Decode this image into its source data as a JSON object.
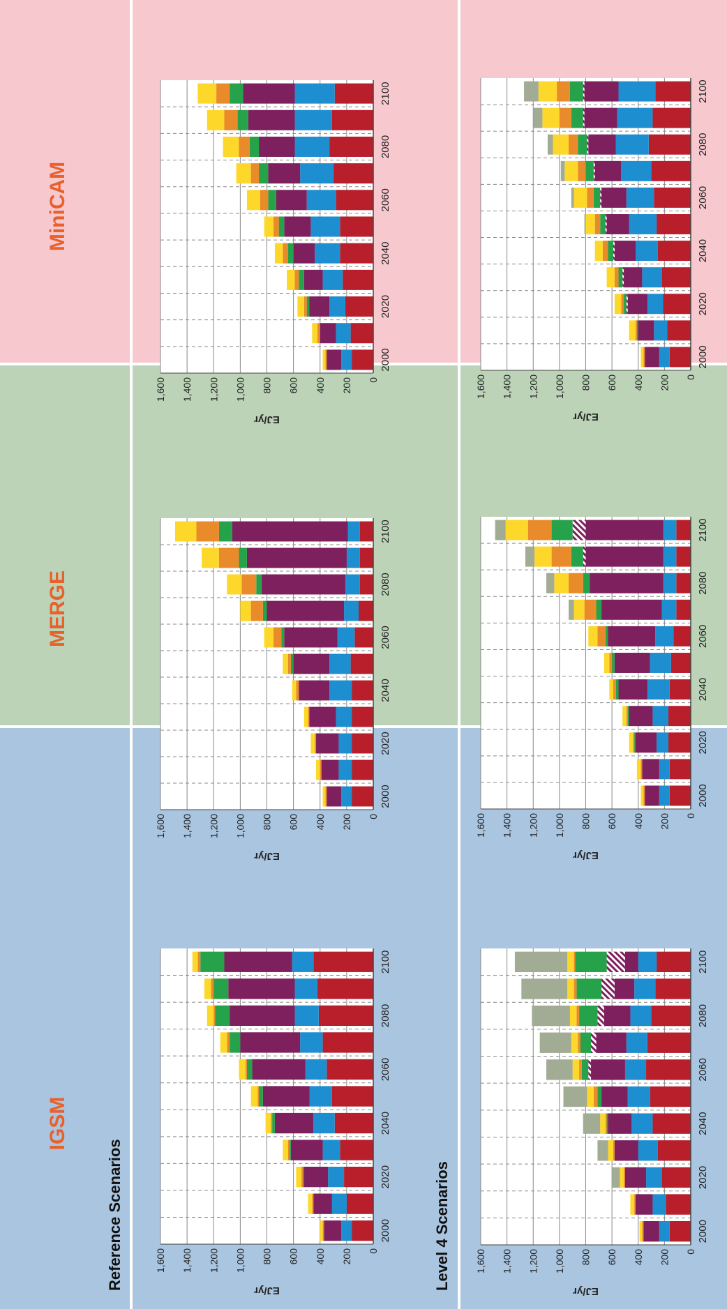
{
  "page": {
    "row_titles": [
      "Reference Scenarios",
      "Level 4 Scenarios"
    ],
    "model_names": [
      "IGSM",
      "MERGE",
      "MiniCAM"
    ],
    "colors": {
      "panel_bg": [
        "#a9c5e0",
        "#bcd3b8",
        "#f7c9cf"
      ],
      "model_title": "#e8602a",
      "grid": "#888888",
      "grid_dash": "#8a8a8a"
    },
    "segment_colors": [
      "#b81f2a",
      "#1d8fd0",
      "#7e1f5e",
      "#7e1f5e",
      "#26a24a",
      "#e98b2a",
      "#fdd72a",
      "#a2ac94"
    ],
    "hatched_segment": 3
  },
  "chart_data": [
    {
      "type": "bar",
      "stacked": true,
      "orientation": "horizontal",
      "model": "IGSM",
      "row": "Reference Scenarios",
      "ylabel": "EJ/yr",
      "ylim": [
        0,
        1600
      ],
      "yticks": [
        "0",
        "200",
        "400",
        "600",
        "800",
        "1,000",
        "1,200",
        "1,400",
        "1,600"
      ],
      "x": [
        "2000",
        "2010",
        "2020",
        "2030",
        "2040",
        "2050",
        "2060",
        "2070",
        "2080",
        "2090",
        "2100"
      ],
      "xtick_labels": [
        "2000",
        "",
        "2020",
        "",
        "2040",
        "",
        "2060",
        "",
        "2080",
        "",
        "2100"
      ],
      "stacks": [
        [
          160,
          80,
          130,
          0,
          0,
          10,
          20,
          0
        ],
        [
          200,
          110,
          140,
          0,
          0,
          10,
          30,
          0
        ],
        [
          220,
          120,
          180,
          0,
          10,
          10,
          40,
          0
        ],
        [
          250,
          130,
          240,
          0,
          10,
          10,
          40,
          0
        ],
        [
          290,
          160,
          290,
          0,
          20,
          10,
          40,
          0
        ],
        [
          310,
          170,
          350,
          0,
          30,
          10,
          50,
          0
        ],
        [
          350,
          160,
          400,
          0,
          40,
          10,
          50,
          0
        ],
        [
          380,
          170,
          450,
          0,
          80,
          20,
          50,
          0
        ],
        [
          410,
          180,
          490,
          0,
          110,
          10,
          50,
          0
        ],
        [
          420,
          170,
          500,
          0,
          110,
          20,
          50,
          0
        ],
        [
          450,
          160,
          510,
          0,
          180,
          20,
          40,
          0
        ]
      ]
    },
    {
      "type": "bar",
      "stacked": true,
      "orientation": "horizontal",
      "model": "MERGE",
      "row": "Reference Scenarios",
      "ylabel": "EJ/yr",
      "ylim": [
        0,
        1600
      ],
      "yticks": [
        "0",
        "200",
        "400",
        "600",
        "800",
        "1,000",
        "1,200",
        "1,400",
        "1,600"
      ],
      "x": [
        "2000",
        "2010",
        "2020",
        "2030",
        "2040",
        "2050",
        "2060",
        "2070",
        "2080",
        "2090",
        "2100"
      ],
      "xtick_labels": [
        "2000",
        "",
        "2020",
        "",
        "2040",
        "",
        "2060",
        "",
        "2080",
        "",
        "2100"
      ],
      "stacks": [
        [
          160,
          80,
          110,
          0,
          0,
          10,
          20,
          0
        ],
        [
          160,
          100,
          130,
          0,
          0,
          10,
          30,
          0
        ],
        [
          160,
          100,
          170,
          0,
          0,
          10,
          30,
          0
        ],
        [
          160,
          120,
          200,
          0,
          0,
          10,
          30,
          0
        ],
        [
          160,
          170,
          230,
          0,
          0,
          20,
          30,
          0
        ],
        [
          170,
          160,
          270,
          0,
          20,
          20,
          40,
          0
        ],
        [
          140,
          130,
          400,
          0,
          20,
          60,
          70,
          0
        ],
        [
          110,
          110,
          580,
          0,
          30,
          90,
          80,
          0
        ],
        [
          100,
          110,
          630,
          0,
          40,
          110,
          110,
          0
        ],
        [
          100,
          100,
          750,
          0,
          60,
          150,
          130,
          0
        ],
        [
          100,
          90,
          870,
          0,
          100,
          170,
          160,
          0
        ]
      ]
    },
    {
      "type": "bar",
      "stacked": true,
      "orientation": "horizontal",
      "model": "MiniCAM",
      "row": "Reference Scenarios",
      "ylabel": "EJ/yr",
      "ylim": [
        0,
        1600
      ],
      "yticks": [
        "0",
        "200",
        "400",
        "600",
        "800",
        "1,000",
        "1,200",
        "1,400",
        "1,600"
      ],
      "x": [
        "2000",
        "2010",
        "2020",
        "2030",
        "2040",
        "2050",
        "2060",
        "2070",
        "2080",
        "2090",
        "2100"
      ],
      "xtick_labels": [
        "2000",
        "",
        "2020",
        "",
        "2040",
        "",
        "2060",
        "",
        "2080",
        "",
        "2100"
      ],
      "stacks": [
        [
          160,
          80,
          110,
          0,
          0,
          10,
          20,
          0
        ],
        [
          170,
          110,
          120,
          0,
          0,
          20,
          40,
          0
        ],
        [
          210,
          120,
          150,
          0,
          20,
          20,
          50,
          0
        ],
        [
          230,
          150,
          140,
          0,
          40,
          30,
          60,
          0
        ],
        [
          250,
          190,
          160,
          0,
          40,
          40,
          60,
          0
        ],
        [
          250,
          220,
          200,
          0,
          40,
          40,
          70,
          0
        ],
        [
          280,
          220,
          230,
          0,
          60,
          60,
          100,
          0
        ],
        [
          300,
          250,
          240,
          0,
          70,
          60,
          110,
          0
        ],
        [
          330,
          260,
          270,
          0,
          70,
          80,
          120,
          0
        ],
        [
          310,
          280,
          350,
          0,
          80,
          100,
          130,
          0
        ],
        [
          290,
          300,
          390,
          0,
          100,
          100,
          140,
          0
        ]
      ]
    },
    {
      "type": "bar",
      "stacked": true,
      "orientation": "horizontal",
      "model": "IGSM",
      "row": "Level 4 Scenarios",
      "ylabel": "EJ/yr",
      "ylim": [
        0,
        1600
      ],
      "yticks": [
        "0",
        "200",
        "400",
        "600",
        "800",
        "1,000",
        "1,200",
        "1,400",
        "1,600"
      ],
      "x": [
        "2000",
        "2010",
        "2020",
        "2030",
        "2040",
        "2050",
        "2060",
        "2070",
        "2080",
        "2090",
        "2100"
      ],
      "xtick_labels": [
        "2000",
        "",
        "2020",
        "",
        "2040",
        "",
        "2060",
        "",
        "2080",
        "",
        "2100"
      ],
      "stacks": [
        [
          160,
          80,
          120,
          0,
          0,
          10,
          20,
          0
        ],
        [
          190,
          100,
          130,
          0,
          0,
          10,
          30,
          0
        ],
        [
          220,
          120,
          160,
          0,
          0,
          10,
          30,
          60
        ],
        [
          250,
          150,
          180,
          0,
          0,
          10,
          40,
          80
        ],
        [
          290,
          160,
          180,
          0,
          10,
          10,
          40,
          130
        ],
        [
          310,
          170,
          200,
          0,
          30,
          30,
          50,
          180
        ],
        [
          340,
          160,
          260,
          20,
          50,
          20,
          50,
          200
        ],
        [
          330,
          160,
          230,
          40,
          80,
          20,
          50,
          240
        ],
        [
          300,
          160,
          200,
          50,
          140,
          20,
          50,
          290
        ],
        [
          270,
          160,
          150,
          100,
          190,
          20,
          50,
          350
        ],
        [
          260,
          140,
          100,
          140,
          240,
          10,
          50,
          400
        ]
      ]
    },
    {
      "type": "bar",
      "stacked": true,
      "orientation": "horizontal",
      "model": "MERGE",
      "row": "Level 4 Scenarios",
      "ylabel": "EJ/yr",
      "ylim": [
        0,
        1600
      ],
      "yticks": [
        "0",
        "200",
        "400",
        "600",
        "800",
        "1,000",
        "1,200",
        "1,400",
        "1,600"
      ],
      "x": [
        "2000",
        "2010",
        "2020",
        "2030",
        "2040",
        "2050",
        "2060",
        "2070",
        "2080",
        "2090",
        "2100"
      ],
      "xtick_labels": [
        "2000",
        "",
        "2020",
        "",
        "2040",
        "",
        "2060",
        "",
        "2080",
        "",
        "2100"
      ],
      "stacks": [
        [
          160,
          80,
          110,
          0,
          0,
          10,
          20,
          0
        ],
        [
          160,
          80,
          130,
          0,
          0,
          10,
          30,
          0
        ],
        [
          170,
          90,
          160,
          0,
          10,
          10,
          30,
          0
        ],
        [
          170,
          120,
          180,
          0,
          10,
          10,
          30,
          0
        ],
        [
          160,
          170,
          220,
          0,
          20,
          20,
          30,
          0
        ],
        [
          150,
          160,
          270,
          0,
          20,
          20,
          40,
          0
        ],
        [
          130,
          140,
          360,
          0,
          20,
          60,
          70,
          0
        ],
        [
          110,
          110,
          460,
          0,
          40,
          90,
          80,
          40
        ],
        [
          110,
          100,
          560,
          0,
          50,
          110,
          110,
          60
        ],
        [
          110,
          100,
          590,
          20,
          90,
          150,
          130,
          70
        ],
        [
          110,
          100,
          590,
          100,
          160,
          180,
          170,
          80
        ]
      ]
    },
    {
      "type": "bar",
      "stacked": true,
      "orientation": "horizontal",
      "model": "MiniCAM",
      "row": "Level 4 Scenarios",
      "ylabel": "EJ/yr",
      "ylim": [
        0,
        1600
      ],
      "yticks": [
        "0",
        "200",
        "400",
        "600",
        "800",
        "1,000",
        "1,200",
        "1,400",
        "1,600"
      ],
      "x": [
        "2000",
        "2010",
        "2020",
        "2030",
        "2040",
        "2050",
        "2060",
        "2070",
        "2080",
        "2090",
        "2100"
      ],
      "xtick_labels": [
        "2000",
        "",
        "2020",
        "",
        "2040",
        "",
        "2060",
        "",
        "2080",
        "",
        "2100"
      ],
      "stacks": [
        [
          160,
          80,
          110,
          0,
          0,
          10,
          20,
          0
        ],
        [
          180,
          100,
          120,
          0,
          10,
          10,
          50,
          0
        ],
        [
          210,
          120,
          150,
          10,
          20,
          20,
          50,
          0
        ],
        [
          220,
          150,
          140,
          10,
          30,
          30,
          60,
          0
        ],
        [
          250,
          170,
          160,
          10,
          40,
          40,
          60,
          0
        ],
        [
          260,
          210,
          170,
          10,
          40,
          40,
          70,
          10
        ],
        [
          280,
          210,
          190,
          10,
          50,
          50,
          100,
          20
        ],
        [
          300,
          230,
          200,
          10,
          60,
          60,
          100,
          30
        ],
        [
          320,
          250,
          210,
          10,
          70,
          70,
          120,
          40
        ],
        [
          290,
          270,
          250,
          10,
          90,
          90,
          130,
          70
        ],
        [
          270,
          280,
          260,
          10,
          100,
          100,
          140,
          110
        ]
      ]
    }
  ]
}
